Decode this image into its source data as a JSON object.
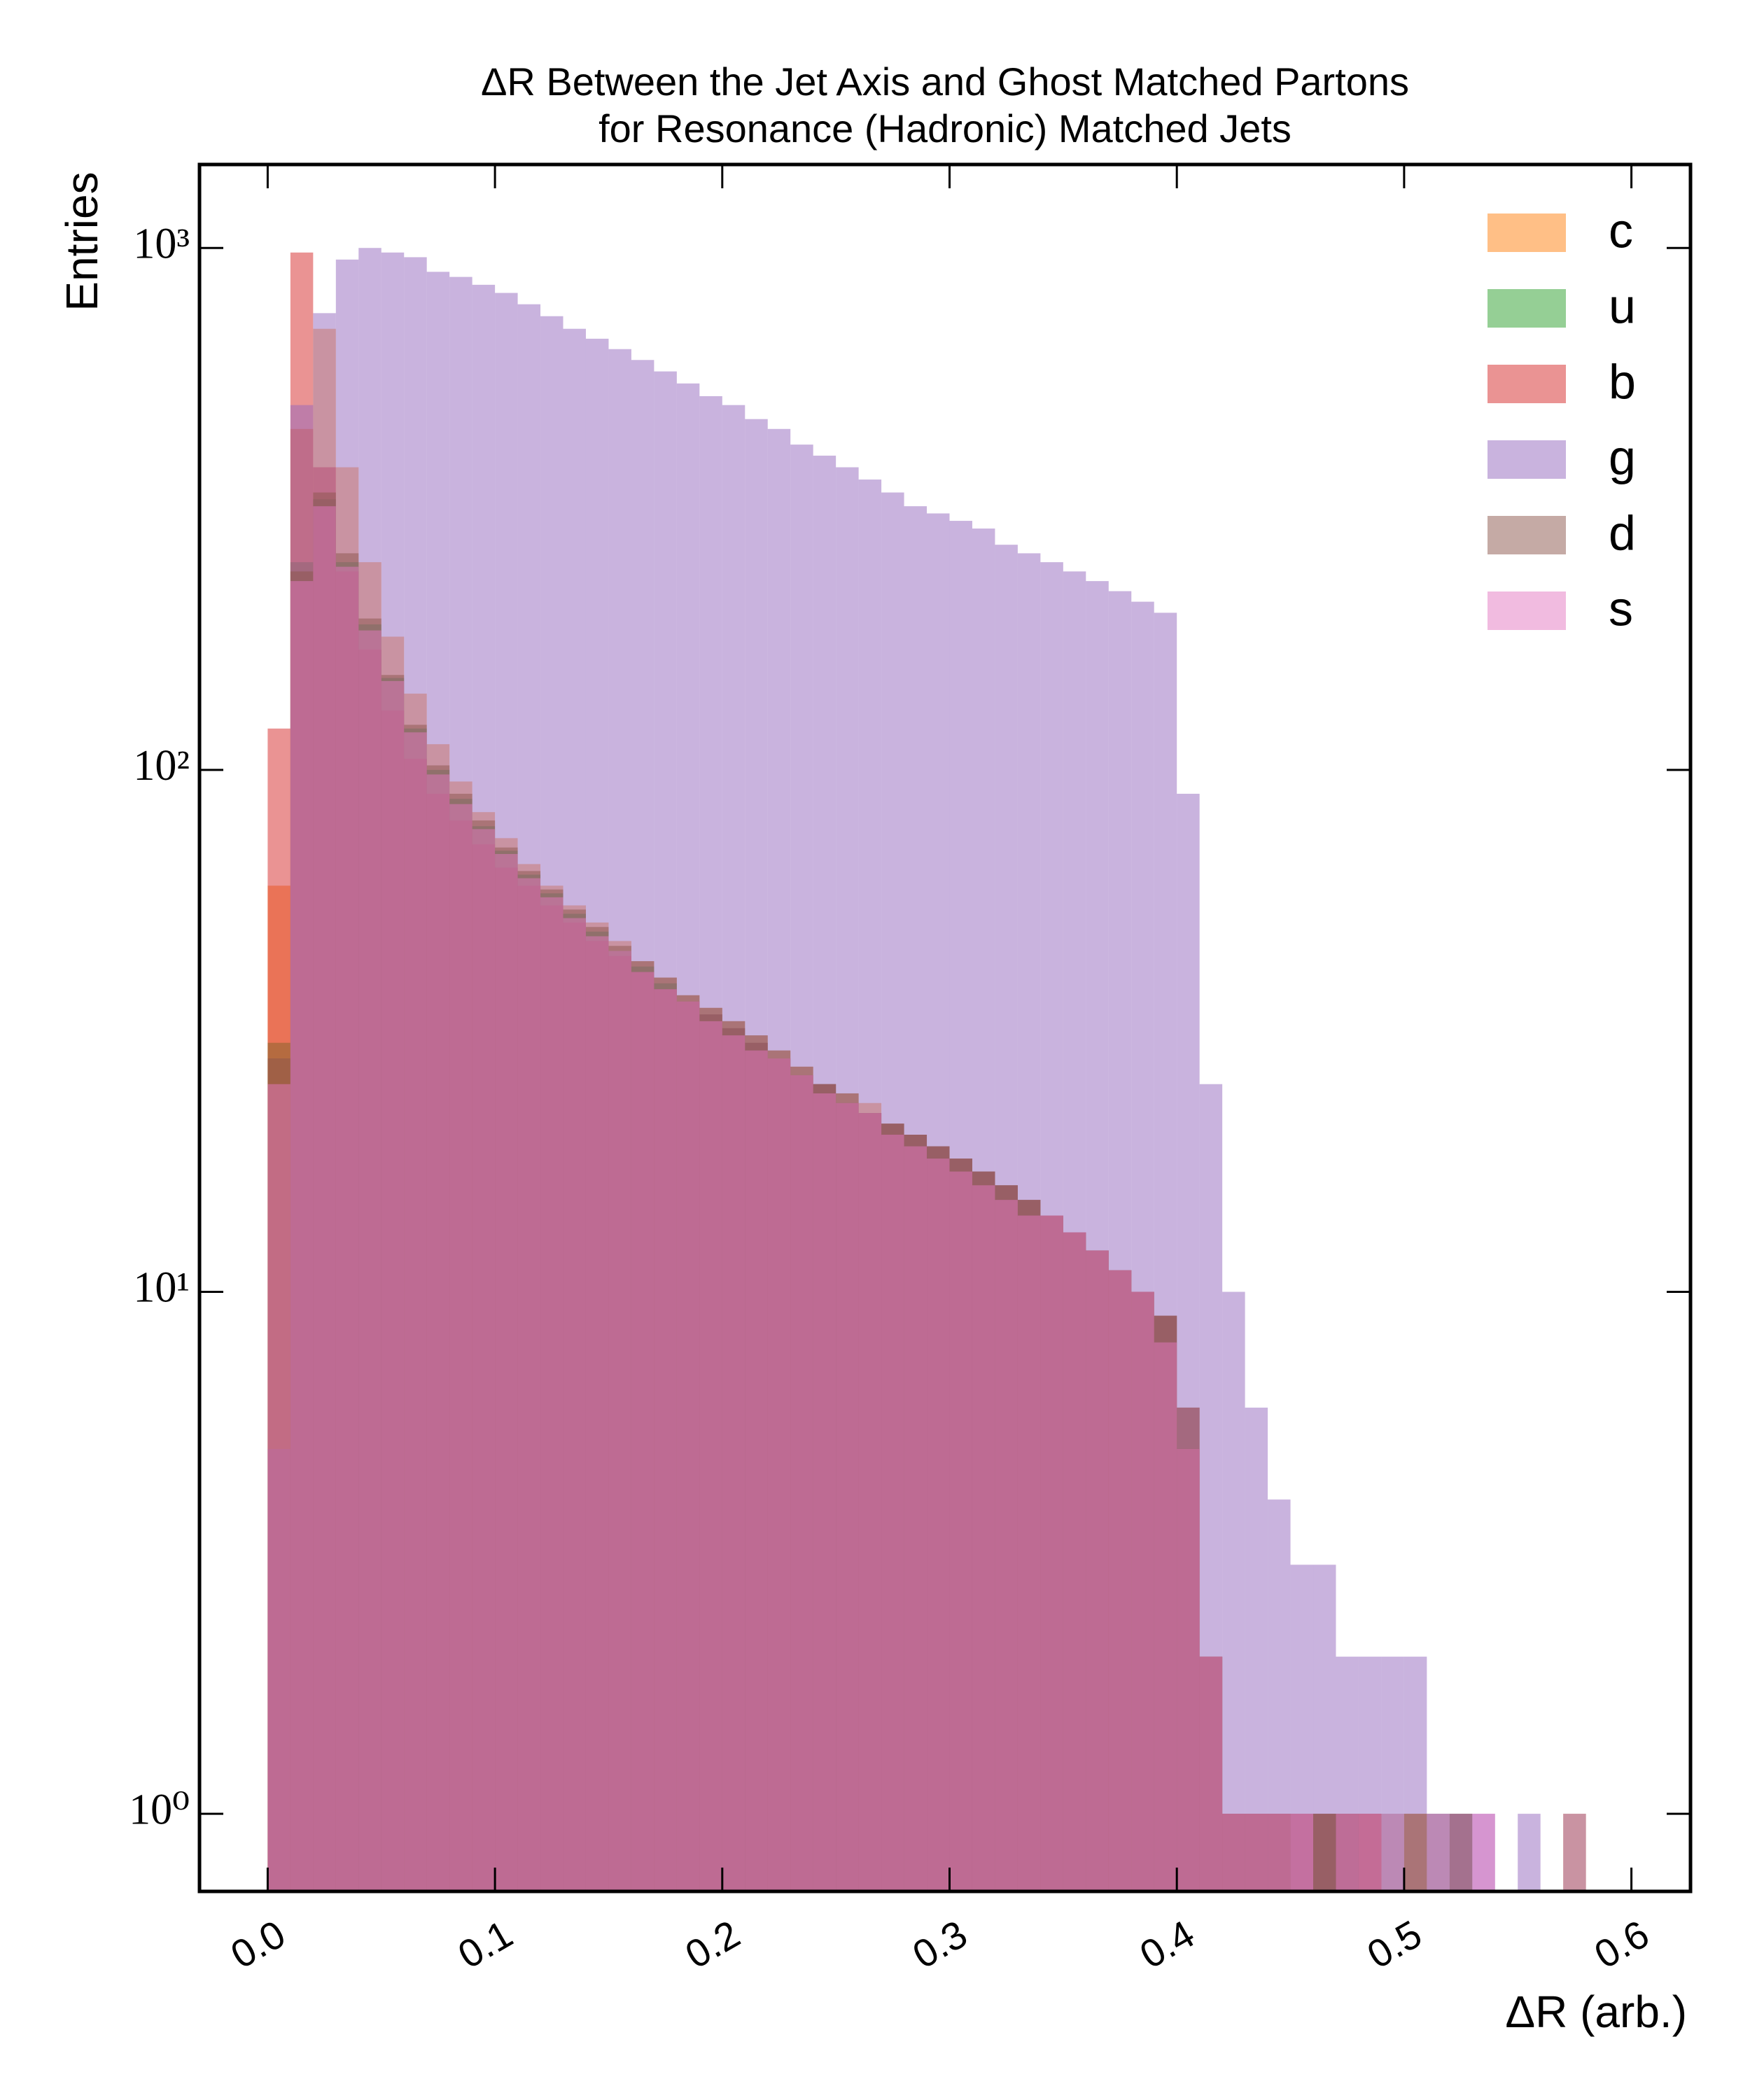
{
  "chart_data": {
    "type": "histogram",
    "title": [
      "ΔR Between the Jet Axis and Ghost Matched Partons",
      "for Resonance (Hadronic) Matched Jets"
    ],
    "x_label": "ΔR (arb.)",
    "y_label": "Entries",
    "yscale": "log",
    "legend_loc": "upper right",
    "opacity": 0.5,
    "xlim": [
      -0.03,
      0.626
    ],
    "ylim": [
      0.71,
      1445
    ],
    "xticks": [
      {
        "value": 0,
        "label": "0.0"
      },
      0.1,
      0.2,
      0.3,
      0.4,
      0.5,
      0.6
    ],
    "yticks": [
      {
        "value": 1,
        "label": "10⁰"
      },
      {
        "value": 10,
        "label": "10¹"
      },
      {
        "value": 100,
        "label": "10²"
      },
      {
        "value": 1000,
        "label": "10³"
      }
    ],
    "bins": [
      0,
      0.01,
      0.02,
      0.03,
      0.04,
      0.05,
      0.06,
      0.07,
      0.08,
      0.09,
      0.1,
      0.11,
      0.12,
      0.13,
      0.14,
      0.15,
      0.16,
      0.17,
      0.18,
      0.19,
      0.2,
      0.21,
      0.22,
      0.23,
      0.24,
      0.25,
      0.26,
      0.27,
      0.28,
      0.29,
      0.3,
      0.31,
      0.32,
      0.33,
      0.34,
      0.35,
      0.36,
      0.37,
      0.38,
      0.39,
      0.4,
      0.41,
      0.42,
      0.43,
      0.44,
      0.45,
      0.46,
      0.47,
      0.48,
      0.49,
      0.5,
      0.51,
      0.52,
      0.53,
      0.54,
      0.55,
      0.56,
      0.57,
      0.58
    ],
    "series": [
      {
        "name": "c",
        "color": "#ff7f0e",
        "values": [
          60,
          450,
          700,
          380,
          250,
          180,
          140,
          112,
          95,
          83,
          74,
          66,
          60,
          55,
          51,
          47,
          43,
          40,
          37,
          35,
          33,
          31,
          29,
          27,
          25,
          24,
          23,
          21,
          20,
          19,
          18,
          17,
          16,
          15,
          14,
          13,
          12,
          11,
          10,
          9,
          6,
          2,
          1,
          1,
          1,
          1,
          1,
          0,
          1,
          0,
          1,
          0,
          0,
          0,
          0,
          0,
          0,
          1
        ]
      },
      {
        "name": "u",
        "color": "#2ca02c",
        "values": [
          30,
          250,
          330,
          250,
          190,
          150,
          120,
          100,
          88,
          78,
          70,
          63,
          58,
          53,
          49,
          45,
          42,
          39,
          36,
          34,
          32,
          30,
          28,
          26,
          25,
          23,
          22,
          21,
          20,
          19,
          18,
          17,
          16,
          15,
          14,
          13,
          12,
          11,
          10,
          9,
          6,
          2,
          1,
          1,
          1,
          1,
          1,
          1,
          0,
          1,
          0,
          1,
          1,
          0,
          0,
          0,
          0,
          0
        ]
      },
      {
        "name": "b",
        "color": "#d62728",
        "values": [
          120,
          980,
          380,
          240,
          170,
          130,
          105,
          90,
          80,
          72,
          65,
          60,
          55,
          51,
          47,
          44,
          41,
          38,
          36,
          34,
          32,
          30,
          28,
          26,
          25,
          23,
          22,
          21,
          20,
          19,
          18,
          17,
          16,
          15,
          14,
          13,
          12,
          11,
          10,
          9,
          6,
          2,
          1,
          1,
          1,
          1,
          1,
          1,
          1,
          0,
          0,
          0,
          1,
          0,
          0,
          0,
          0,
          0
        ]
      },
      {
        "name": "g",
        "color": "#9467bd",
        "values": [
          5,
          500,
          750,
          950,
          1000,
          980,
          960,
          900,
          880,
          850,
          820,
          780,
          740,
          700,
          670,
          640,
          610,
          580,
          550,
          520,
          500,
          470,
          450,
          420,
          400,
          380,
          360,
          340,
          320,
          310,
          300,
          290,
          270,
          260,
          250,
          240,
          230,
          220,
          210,
          200,
          90,
          25,
          10,
          6,
          4,
          3,
          3,
          2,
          2,
          2,
          2,
          1,
          1,
          1,
          0,
          1,
          0,
          1
        ]
      },
      {
        "name": "d",
        "color": "#8c564b",
        "values": [
          28,
          240,
          340,
          260,
          195,
          152,
          122,
          102,
          90,
          80,
          71,
          64,
          59,
          54,
          50,
          46,
          43,
          40,
          37,
          35,
          33,
          31,
          29,
          27,
          25,
          24,
          22,
          21,
          20,
          19,
          18,
          17,
          16,
          15,
          14,
          13,
          12,
          11,
          10,
          9,
          5,
          2,
          1,
          1,
          1,
          0,
          1,
          1,
          1,
          0,
          1,
          0,
          0,
          0,
          0,
          0,
          0,
          0
        ]
      },
      {
        "name": "s",
        "color": "#e377c2",
        "values": [
          25,
          230,
          320,
          245,
          185,
          148,
          118,
          98,
          86,
          77,
          69,
          62,
          57,
          52,
          48,
          45,
          41,
          38,
          36,
          33,
          31,
          29,
          28,
          26,
          24,
          23,
          22,
          20,
          19,
          18,
          17,
          16,
          15,
          14,
          14,
          13,
          12,
          11,
          10,
          8,
          5,
          2,
          1,
          1,
          1,
          1,
          0,
          1,
          1,
          1,
          0,
          1,
          0,
          1,
          0,
          0,
          0,
          0
        ]
      }
    ]
  }
}
